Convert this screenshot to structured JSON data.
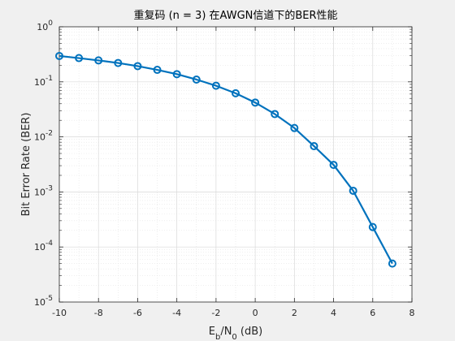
{
  "chart_data": {
    "type": "line",
    "title": "重复码 (n = 3) 在AWGN信道下的BER性能",
    "xlabel": "E_b/N_0 (dB)",
    "xlabel_parts": {
      "main1": "E",
      "sub1": "b",
      "slash": "/N",
      "sub2": "0",
      "rest": " (dB)"
    },
    "ylabel": "Bit Error Rate (BER)",
    "y_scale": "log",
    "xlim": [
      -10,
      8
    ],
    "ylim": [
      1e-05,
      1
    ],
    "x_ticks": [
      "-10",
      "-8",
      "-6",
      "-4",
      "-2",
      "0",
      "2",
      "4",
      "6",
      "8"
    ],
    "y_ticks": [
      {
        "base": "10",
        "exp": "0"
      },
      {
        "base": "10",
        "exp": "-1"
      },
      {
        "base": "10",
        "exp": "-2"
      },
      {
        "base": "10",
        "exp": "-3"
      },
      {
        "base": "10",
        "exp": "-4"
      },
      {
        "base": "10",
        "exp": "-5"
      }
    ],
    "grid": true,
    "minor_grid": true,
    "series": [
      {
        "color": "#0072BD",
        "marker": "circle",
        "x": [
          -10,
          -9,
          -8,
          -7,
          -6,
          -5,
          -4,
          -3,
          -2,
          -1,
          0,
          1,
          2,
          3,
          4,
          5,
          6,
          7
        ],
        "y": [
          0.295,
          0.27,
          0.245,
          0.22,
          0.193,
          0.165,
          0.138,
          0.11,
          0.085,
          0.062,
          0.042,
          0.026,
          0.0145,
          0.0068,
          0.0031,
          0.00105,
          0.00023,
          5e-05
        ]
      }
    ]
  }
}
